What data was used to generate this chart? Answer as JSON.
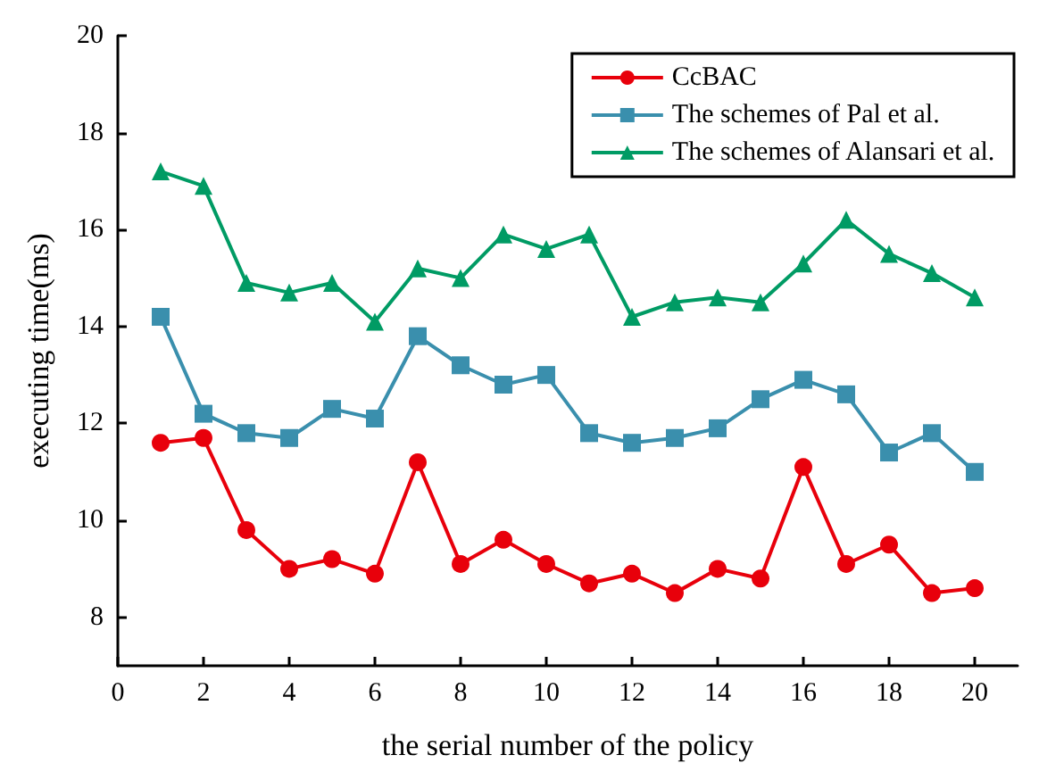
{
  "chart_data": {
    "type": "line",
    "xlabel": "the serial number of the policy",
    "ylabel": "executing time(ms)",
    "x": [
      1,
      2,
      3,
      4,
      5,
      6,
      7,
      8,
      9,
      10,
      11,
      12,
      13,
      14,
      15,
      16,
      17,
      18,
      19,
      20
    ],
    "series": [
      {
        "name": "CcBAC",
        "color": "#e8000b",
        "marker": "circle",
        "values": [
          11.6,
          11.7,
          9.8,
          9.0,
          9.2,
          8.9,
          11.2,
          9.1,
          9.6,
          9.1,
          8.7,
          8.9,
          8.5,
          9.0,
          8.8,
          11.1,
          9.1,
          9.5,
          8.5,
          8.6
        ]
      },
      {
        "name": "The schemes of Pal et al.",
        "color": "#3a8fad",
        "marker": "square",
        "values": [
          14.2,
          12.2,
          11.8,
          11.7,
          12.3,
          12.1,
          13.8,
          13.2,
          12.8,
          13.0,
          11.8,
          11.6,
          11.7,
          11.9,
          12.5,
          12.9,
          12.6,
          11.4,
          11.8,
          11.0
        ]
      },
      {
        "name": "The schemes of Alansari et al.",
        "color": "#009b64",
        "marker": "triangle",
        "values": [
          17.2,
          16.9,
          14.9,
          14.7,
          14.9,
          14.1,
          15.2,
          15.0,
          15.9,
          15.6,
          15.9,
          14.2,
          14.5,
          14.6,
          14.5,
          15.3,
          16.2,
          15.5,
          15.1,
          14.6
        ]
      }
    ],
    "xlim": [
      0,
      21
    ],
    "xticks": [
      0,
      2,
      4,
      6,
      8,
      10,
      12,
      14,
      16,
      18,
      20
    ],
    "ylim": [
      7,
      20
    ],
    "yticks": [
      8,
      10,
      12,
      14,
      16,
      18,
      20
    ],
    "grid": false,
    "legend": "top right",
    "line_style": "solid"
  }
}
